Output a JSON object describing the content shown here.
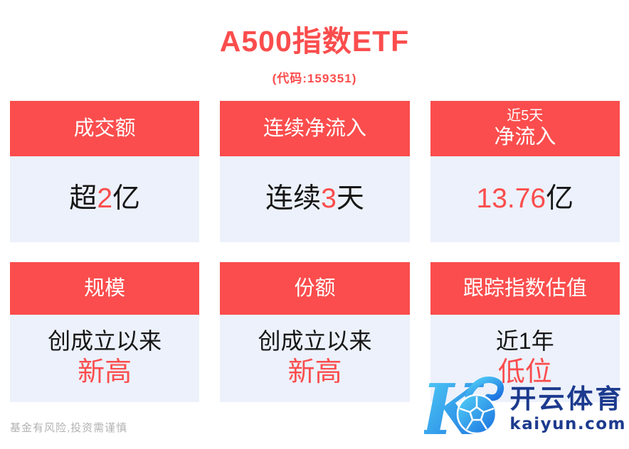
{
  "title": "A500指数ETF",
  "subtitle": "(代码:159351)",
  "colors": {
    "accent_red": "#fb4d4d",
    "card_body_bg": "#ecf1fb",
    "watermark_navy": "#1c3a8e",
    "logo_gradient_start": "#53d2f7",
    "logo_gradient_end": "#1a6fe0",
    "disclaimer_gray": "#b2b2b2"
  },
  "cards": [
    {
      "name": "turnover",
      "header": [
        {
          "text": "成交额",
          "small": false
        }
      ],
      "body": [
        [
          {
            "text": "超",
            "red": false
          },
          {
            "text": "2",
            "red": true
          },
          {
            "text": "亿",
            "red": false
          }
        ]
      ]
    },
    {
      "name": "consecutive-net-inflow",
      "header": [
        {
          "text": "连续净流入",
          "small": false
        }
      ],
      "body": [
        [
          {
            "text": "连续",
            "red": false
          },
          {
            "text": "3",
            "red": true
          },
          {
            "text": "天",
            "red": false
          }
        ]
      ]
    },
    {
      "name": "net-inflow-5d",
      "header": [
        {
          "text": "近5天",
          "small": true
        },
        {
          "text": "净流入",
          "small": false
        }
      ],
      "body": [
        [
          {
            "text": "13.76",
            "red": true
          },
          {
            "text": "亿",
            "red": false
          }
        ]
      ]
    },
    {
      "name": "aum-scale",
      "header": [
        {
          "text": "规模",
          "small": false
        }
      ],
      "body": [
        [
          {
            "text": "创成立以来",
            "red": false
          }
        ],
        [
          {
            "text": "新高",
            "red": true
          }
        ]
      ]
    },
    {
      "name": "shares",
      "header": [
        {
          "text": "份额",
          "small": false
        }
      ],
      "body": [
        [
          {
            "text": "创成立以来",
            "red": false
          }
        ],
        [
          {
            "text": "新高",
            "red": true
          }
        ]
      ]
    },
    {
      "name": "tracked-index-valuation",
      "header": [
        {
          "text": "跟踪指数估值",
          "small": false
        }
      ],
      "body": [
        [
          {
            "text": "近1年",
            "red": false
          }
        ],
        [
          {
            "text": "低位",
            "red": true
          }
        ]
      ]
    }
  ],
  "disclaimer": "基金有风险,投资需谨慎",
  "watermark": {
    "brand": "开云体育",
    "domain": "kaiyun.com",
    "logo": "kaiyun-k-soccer-ball"
  }
}
